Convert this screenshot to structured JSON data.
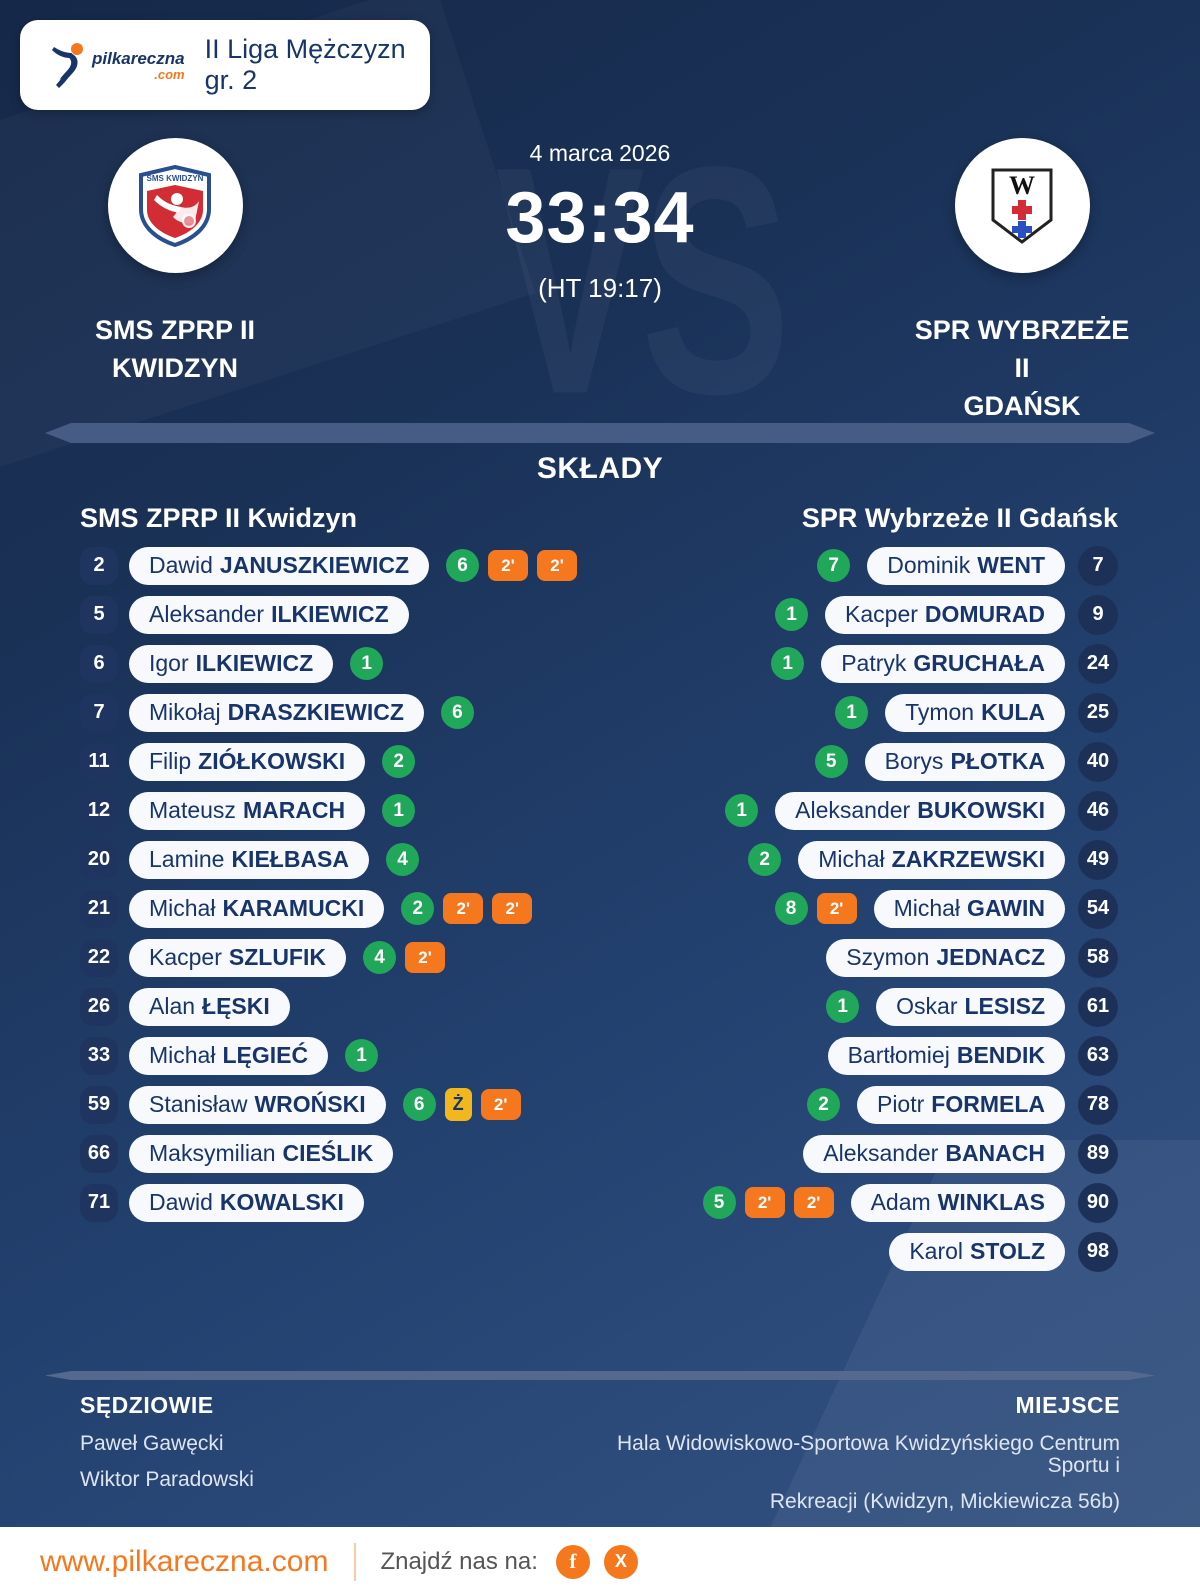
{
  "header": {
    "brand": "pilkareczna",
    "brand_tld": ".com",
    "league": "II Liga Mężczyzn gr. 2"
  },
  "match": {
    "date": "4 marca 2026",
    "score": "33:34",
    "halftime": "(HT 19:17)",
    "vs_watermark": "VS",
    "home_team": {
      "line1": "SMS ZPRP II",
      "line2": "KWIDZYN"
    },
    "away_team": {
      "line1": "SPR WYBRZEŻE II",
      "line2": "GDAŃSK"
    }
  },
  "lineups": {
    "title": "SKŁADY",
    "home_header": "SMS ZPRP II Kwidzyn",
    "away_header": "SPR Wybrzeże II Gdańsk",
    "home_players": [
      {
        "number": "2",
        "first": "Dawid",
        "last": "JANUSZKIEWICZ",
        "badges": [
          {
            "type": "goals",
            "text": "6"
          },
          {
            "type": "susp",
            "text": "2'"
          },
          {
            "type": "susp",
            "text": "2'"
          }
        ]
      },
      {
        "number": "5",
        "first": "Aleksander",
        "last": "ILKIEWICZ",
        "badges": []
      },
      {
        "number": "6",
        "first": "Igor",
        "last": "ILKIEWICZ",
        "badges": [
          {
            "type": "goals",
            "text": "1"
          }
        ]
      },
      {
        "number": "7",
        "first": "Mikołaj",
        "last": "DRASZKIEWICZ",
        "badges": [
          {
            "type": "goals",
            "text": "6"
          }
        ]
      },
      {
        "number": "11",
        "first": "Filip",
        "last": "ZIÓŁKOWSKI",
        "badges": [
          {
            "type": "goals",
            "text": "2"
          }
        ]
      },
      {
        "number": "12",
        "first": "Mateusz",
        "last": "MARACH",
        "badges": [
          {
            "type": "goals",
            "text": "1"
          }
        ]
      },
      {
        "number": "20",
        "first": "Lamine",
        "last": "KIEŁBASA",
        "badges": [
          {
            "type": "goals",
            "text": "4"
          }
        ]
      },
      {
        "number": "21",
        "first": "Michał",
        "last": "KARAMUCKI",
        "badges": [
          {
            "type": "goals",
            "text": "2"
          },
          {
            "type": "susp",
            "text": "2'"
          },
          {
            "type": "susp",
            "text": "2'"
          }
        ]
      },
      {
        "number": "22",
        "first": "Kacper",
        "last": "SZLUFIK",
        "badges": [
          {
            "type": "goals",
            "text": "4"
          },
          {
            "type": "susp",
            "text": "2'"
          }
        ]
      },
      {
        "number": "26",
        "first": "Alan",
        "last": "ŁĘSKI",
        "badges": []
      },
      {
        "number": "33",
        "first": "Michał",
        "last": "LĘGIEĆ",
        "badges": [
          {
            "type": "goals",
            "text": "1"
          }
        ]
      },
      {
        "number": "59",
        "first": "Stanisław",
        "last": "WROŃSKI",
        "badges": [
          {
            "type": "goals",
            "text": "6"
          },
          {
            "type": "yellow",
            "text": "Ż"
          },
          {
            "type": "susp",
            "text": "2'"
          }
        ]
      },
      {
        "number": "66",
        "first": "Maksymilian",
        "last": "CIEŚLIK",
        "badges": []
      },
      {
        "number": "71",
        "first": "Dawid",
        "last": "KOWALSKI",
        "badges": []
      }
    ],
    "away_players": [
      {
        "number": "7",
        "first": "Dominik",
        "last": "WENT",
        "badges": [
          {
            "type": "goals",
            "text": "7"
          }
        ]
      },
      {
        "number": "9",
        "first": "Kacper",
        "last": "DOMURAD",
        "badges": [
          {
            "type": "goals",
            "text": "1"
          }
        ]
      },
      {
        "number": "24",
        "first": "Patryk",
        "last": "GRUCHAŁA",
        "badges": [
          {
            "type": "goals",
            "text": "1"
          }
        ]
      },
      {
        "number": "25",
        "first": "Tymon",
        "last": "KULA",
        "badges": [
          {
            "type": "goals",
            "text": "1"
          }
        ]
      },
      {
        "number": "40",
        "first": "Borys",
        "last": "PŁOTKA",
        "badges": [
          {
            "type": "goals",
            "text": "5"
          }
        ]
      },
      {
        "number": "46",
        "first": "Aleksander",
        "last": "BUKOWSKI",
        "badges": [
          {
            "type": "goals",
            "text": "1"
          }
        ]
      },
      {
        "number": "49",
        "first": "Michał",
        "last": "ZAKRZEWSKI",
        "badges": [
          {
            "type": "goals",
            "text": "2"
          }
        ]
      },
      {
        "number": "54",
        "first": "Michał",
        "last": "GAWIN",
        "badges": [
          {
            "type": "goals",
            "text": "8"
          },
          {
            "type": "susp",
            "text": "2'"
          }
        ]
      },
      {
        "number": "58",
        "first": "Szymon",
        "last": "JEDNACZ",
        "badges": []
      },
      {
        "number": "61",
        "first": "Oskar",
        "last": "LESISZ",
        "badges": [
          {
            "type": "goals",
            "text": "1"
          }
        ]
      },
      {
        "number": "63",
        "first": "Bartłomiej",
        "last": "BENDIK",
        "badges": []
      },
      {
        "number": "78",
        "first": "Piotr",
        "last": "FORMELA",
        "badges": [
          {
            "type": "goals",
            "text": "2"
          }
        ]
      },
      {
        "number": "89",
        "first": "Aleksander",
        "last": "BANACH",
        "badges": []
      },
      {
        "number": "90",
        "first": "Adam",
        "last": "WINKLAS",
        "badges": [
          {
            "type": "goals",
            "text": "5"
          },
          {
            "type": "susp",
            "text": "2'"
          },
          {
            "type": "susp",
            "text": "2'"
          }
        ]
      },
      {
        "number": "98",
        "first": "Karol",
        "last": "STOLZ",
        "badges": []
      }
    ]
  },
  "footer": {
    "referees_label": "SĘDZIOWIE",
    "referee_1": "Paweł Gawęcki",
    "referee_2": "Wiktor Paradowski",
    "venue_label": "MIEJSCE",
    "venue_line1": "Hala Widowiskowo-Sportowa Kwidzyńskiego Centrum Sportu i",
    "venue_line2": "Rekreacji (Kwidzyn, Mickiewicza 56b)"
  },
  "bottom_bar": {
    "url": "www.pilkareczna.com",
    "find_us": "Znajdź nas na:",
    "facebook_glyph": "f",
    "x_glyph": "X"
  },
  "colors": {
    "goals_green": "#21a75a",
    "suspension_orange": "#f5781e",
    "yellow_card": "#f2b71d",
    "navy_text": "#17356b",
    "brand_orange": "#f5781e"
  }
}
